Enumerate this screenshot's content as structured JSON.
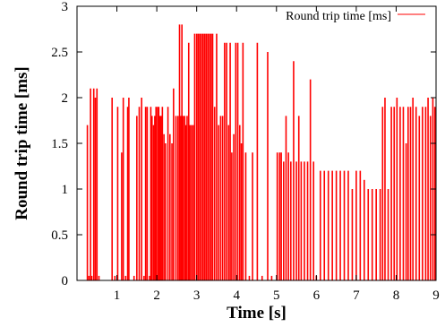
{
  "chart_data": {
    "type": "line",
    "xlabel": "Time [s]",
    "ylabel": "Round trip time [ms]",
    "xlim": [
      0,
      9
    ],
    "ylim": [
      0,
      3
    ],
    "xticks": [
      1,
      2,
      3,
      4,
      5,
      6,
      7,
      8,
      9
    ],
    "yticks": [
      0,
      0.5,
      1,
      1.5,
      2,
      2.5,
      3
    ],
    "ytick_labels": [
      "0",
      "0.5",
      "1",
      "1.5",
      "2",
      "2.5",
      "3"
    ],
    "xtick_labels": [
      "1",
      "2",
      "3",
      "4",
      "5",
      "6",
      "7",
      "8",
      "9"
    ],
    "grid": false,
    "legend_position": "top-right",
    "series": [
      {
        "name": "Round trip time [ms]",
        "color": "#ff0000",
        "x": [
          0.26,
          0.3,
          0.34,
          0.37,
          0.42,
          0.46,
          0.5,
          0.55,
          0.88,
          0.95,
          1.02,
          1.12,
          1.16,
          1.22,
          1.27,
          1.3,
          1.43,
          1.5,
          1.56,
          1.62,
          1.68,
          1.72,
          1.76,
          1.82,
          1.85,
          1.88,
          1.92,
          1.95,
          1.98,
          2.02,
          2.05,
          2.08,
          2.11,
          2.14,
          2.18,
          2.22,
          2.28,
          2.33,
          2.38,
          2.42,
          2.48,
          2.53,
          2.57,
          2.6,
          2.63,
          2.66,
          2.7,
          2.73,
          2.76,
          2.8,
          2.83,
          2.87,
          2.91,
          2.95,
          3.0,
          3.04,
          3.08,
          3.12,
          3.16,
          3.2,
          3.24,
          3.28,
          3.32,
          3.36,
          3.4,
          3.45,
          3.5,
          3.55,
          3.6,
          3.65,
          3.7,
          3.75,
          3.8,
          3.84,
          3.88,
          3.93,
          3.98,
          4.03,
          4.08,
          4.12,
          4.16,
          4.23,
          4.32,
          4.4,
          4.52,
          4.64,
          4.78,
          4.88,
          5.02,
          5.08,
          5.12,
          5.18,
          5.24,
          5.3,
          5.36,
          5.43,
          5.5,
          5.56,
          5.62,
          5.7,
          5.78,
          5.85,
          5.93,
          6.0,
          6.1,
          6.2,
          6.3,
          6.4,
          6.5,
          6.6,
          6.7,
          6.8,
          6.9,
          7.0,
          7.1,
          7.2,
          7.3,
          7.4,
          7.5,
          7.6,
          7.66,
          7.72,
          7.8,
          7.88,
          7.95,
          8.02,
          8.1,
          8.18,
          8.25,
          8.3,
          8.36,
          8.42,
          8.5,
          8.58,
          8.66,
          8.74,
          8.8,
          8.86,
          8.92,
          8.97
        ],
        "values": [
          1.7,
          0.05,
          2.1,
          0.05,
          2.1,
          2.0,
          2.1,
          0.05,
          2.0,
          0.05,
          1.9,
          1.4,
          2.0,
          0.05,
          1.9,
          2.0,
          0.05,
          1.8,
          1.9,
          2.0,
          0.05,
          1.9,
          1.9,
          0.05,
          1.9,
          1.8,
          1.7,
          1.8,
          1.9,
          1.9,
          1.9,
          1.8,
          1.8,
          1.9,
          1.6,
          1.5,
          1.9,
          1.6,
          1.5,
          2.1,
          1.8,
          1.8,
          2.8,
          1.8,
          2.8,
          1.8,
          1.8,
          1.7,
          1.8,
          2.6,
          1.7,
          1.7,
          1.7,
          2.7,
          2.7,
          2.7,
          2.7,
          2.7,
          2.7,
          2.7,
          2.7,
          2.7,
          2.7,
          2.7,
          2.7,
          1.9,
          2.7,
          1.7,
          1.8,
          1.8,
          2.6,
          2.6,
          1.7,
          2.6,
          1.4,
          1.6,
          2.6,
          2.6,
          1.7,
          1.5,
          2.6,
          1.4,
          0.05,
          1.4,
          2.6,
          0.05,
          2.5,
          0.05,
          1.4,
          1.4,
          1.4,
          1.3,
          1.8,
          1.4,
          1.3,
          2.4,
          1.3,
          1.8,
          1.3,
          1.3,
          1.3,
          2.2,
          1.3,
          0.05,
          1.2,
          1.2,
          1.2,
          1.2,
          1.2,
          1.2,
          1.2,
          1.2,
          1.0,
          1.2,
          1.2,
          1.1,
          1.0,
          1.0,
          1.0,
          1.0,
          1.9,
          2.0,
          1.0,
          1.9,
          1.9,
          2.0,
          1.9,
          1.9,
          1.5,
          1.9,
          1.9,
          2.0,
          1.9,
          1.8,
          1.9,
          1.9,
          2.0,
          1.8,
          2.0,
          1.9
        ]
      }
    ]
  }
}
